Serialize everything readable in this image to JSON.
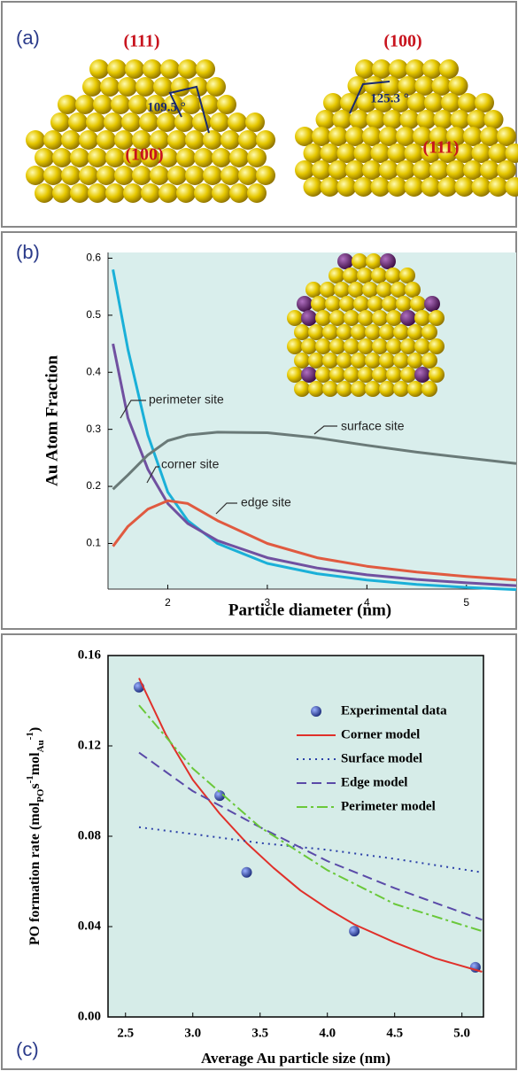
{
  "panel_a": {
    "label": "(a)",
    "left": {
      "top_facet": "(111)",
      "side_facet": "(100)",
      "angle": "109.5 °"
    },
    "right": {
      "top_facet": "(100)",
      "side_facet": "(111)",
      "angle": "125.3 °"
    }
  },
  "chart_data": [
    {
      "type": "line",
      "panel_label": "(b)",
      "ylabel": "Au Atom Fraction",
      "xlabel": "Particle diameter (nm)",
      "xlim": [
        1.4,
        5.5
      ],
      "ylim": [
        0.02,
        0.61
      ],
      "xticks": [
        2,
        3,
        4,
        5
      ],
      "yticks": [
        0.1,
        0.2,
        0.3,
        0.4,
        0.5,
        0.6
      ],
      "legend": "inline",
      "x": [
        1.45,
        1.6,
        1.8,
        2.0,
        2.2,
        2.5,
        3,
        3.5,
        4,
        4.5,
        5,
        5.5
      ],
      "series": [
        {
          "name": "corner site",
          "color": "#1ab0d8",
          "values": [
            0.58,
            0.44,
            0.29,
            0.19,
            0.14,
            0.1,
            0.065,
            0.047,
            0.036,
            0.028,
            0.023,
            0.019
          ]
        },
        {
          "name": "perimeter site",
          "color": "#7050a0",
          "values": [
            0.45,
            0.32,
            0.23,
            0.17,
            0.135,
            0.105,
            0.075,
            0.057,
            0.045,
            0.037,
            0.031,
            0.026
          ]
        },
        {
          "name": "edge site",
          "color": "#e05a40",
          "values": [
            0.095,
            0.13,
            0.16,
            0.175,
            0.17,
            0.14,
            0.1,
            0.075,
            0.06,
            0.05,
            0.042,
            0.036
          ]
        },
        {
          "name": "surface site",
          "color": "#6a7a78",
          "values": [
            0.195,
            0.22,
            0.255,
            0.28,
            0.29,
            0.295,
            0.294,
            0.285,
            0.272,
            0.26,
            0.25,
            0.24
          ]
        }
      ]
    },
    {
      "type": "line",
      "panel_label": "(c)",
      "ylabel_parts": [
        {
          "text": "PO formation rate (mol"
        },
        {
          "text": "PO",
          "shift": "sub"
        },
        {
          "text": "s"
        },
        {
          "text": "-1",
          "shift": "super"
        },
        {
          "text": "mol"
        },
        {
          "text": "Au",
          "shift": "sub"
        },
        {
          "text": "-1",
          "shift": "super"
        },
        {
          "text": ")"
        }
      ],
      "xlabel": "Average Au particle size (nm)",
      "xlim": [
        2.37,
        5.16
      ],
      "ylim": [
        0,
        0.16
      ],
      "xticks": [
        2.5,
        {
          "value": 3,
          "label": "3.0"
        },
        3.5,
        {
          "value": 4,
          "label": "4.0"
        },
        4.5,
        {
          "value": 5,
          "label": "5.0"
        }
      ],
      "yticks": [
        {
          "value": 0,
          "label": "0.00"
        },
        0.04,
        0.08,
        0.12,
        0.16
      ],
      "legend": "top-right",
      "series": [
        {
          "name": "Experimental data",
          "type": "scatter",
          "color": "#2a3f9e",
          "x": [
            2.6,
            3.2,
            3.4,
            4.2,
            5.1
          ],
          "values": [
            0.146,
            0.098,
            0.064,
            0.038,
            0.022
          ]
        },
        {
          "name": "Corner model",
          "type": "line",
          "style": "solid",
          "color": "#e0302a",
          "x": [
            2.6,
            2.8,
            3.0,
            3.2,
            3.4,
            3.6,
            3.8,
            4.0,
            4.2,
            4.5,
            4.8,
            5.15
          ],
          "values": [
            0.15,
            0.125,
            0.105,
            0.09,
            0.077,
            0.066,
            0.056,
            0.048,
            0.041,
            0.033,
            0.026,
            0.02
          ]
        },
        {
          "name": "Surface model",
          "type": "line",
          "style": "dotted",
          "color": "#2a3fa8",
          "x": [
            2.6,
            3.0,
            3.5,
            4.0,
            4.5,
            5.15
          ],
          "values": [
            0.084,
            0.081,
            0.077,
            0.074,
            0.07,
            0.064
          ]
        },
        {
          "name": "Edge model",
          "type": "line",
          "style": "dashed",
          "color": "#5a4aa8",
          "x": [
            2.6,
            3.0,
            3.5,
            4.0,
            4.5,
            5.15
          ],
          "values": [
            0.117,
            0.1,
            0.084,
            0.069,
            0.057,
            0.043
          ]
        },
        {
          "name": "Perimeter model",
          "type": "line",
          "style": "dashdot",
          "color": "#6ac83a",
          "x": [
            2.6,
            3.0,
            3.5,
            4.0,
            4.5,
            5.15
          ],
          "values": [
            0.138,
            0.11,
            0.084,
            0.065,
            0.05,
            0.038
          ]
        }
      ]
    }
  ]
}
